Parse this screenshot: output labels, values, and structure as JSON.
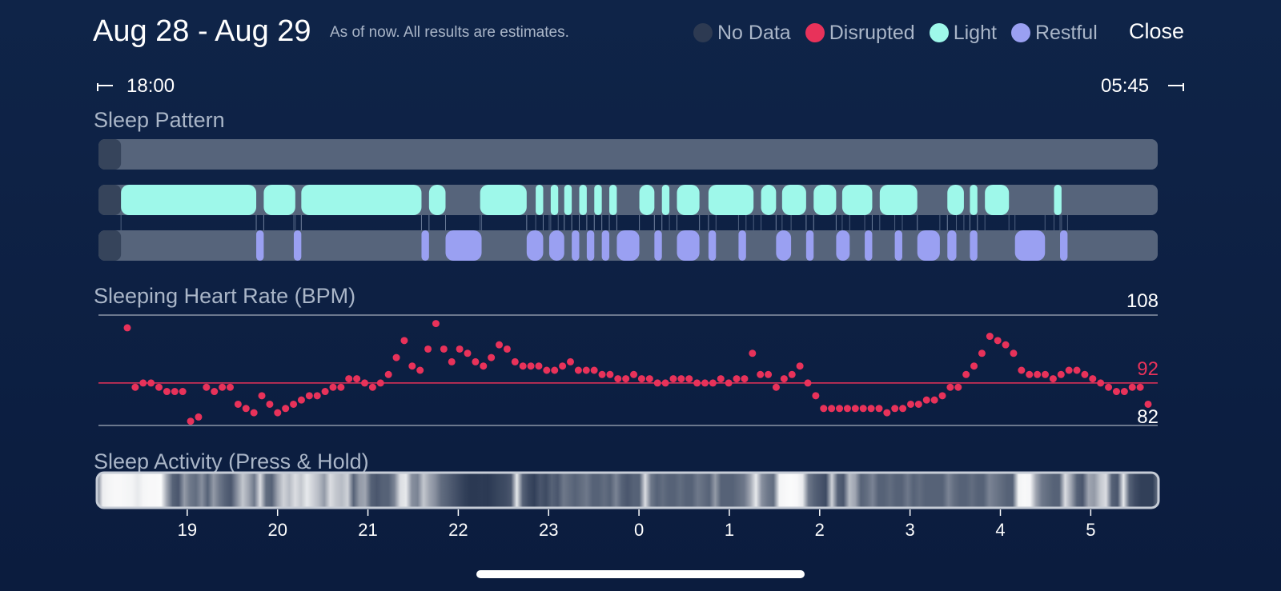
{
  "header": {
    "title": "Aug 28 - Aug 29",
    "subtitle": "As of now. All results are estimates.",
    "close_label": "Close"
  },
  "legend": [
    {
      "label": "No Data",
      "color": "#2d3a52"
    },
    {
      "label": "Disrupted",
      "color": "#e8325a"
    },
    {
      "label": "Light",
      "color": "#9ef8ea"
    },
    {
      "label": "Restful",
      "color": "#9aa0f2"
    }
  ],
  "time_range": {
    "start": "18:00",
    "end": "05:45"
  },
  "sleep_pattern": {
    "title": "Sleep Pattern",
    "colors": {
      "track": "#56647b",
      "no_data": "#36445b",
      "light": "#9ef8ea",
      "restful": "#9aa0f2"
    },
    "no_data_end": "18:15",
    "light": [
      [
        "18:15",
        "19:45"
      ],
      [
        "19:50",
        "20:11"
      ],
      [
        "20:15",
        "21:35"
      ],
      [
        "21:40",
        "21:51"
      ],
      [
        "22:14",
        "22:45"
      ],
      [
        "22:51",
        "22:56"
      ],
      [
        "23:01",
        "23:06"
      ],
      [
        "23:10",
        "23:15"
      ],
      [
        "23:20",
        "23:25"
      ],
      [
        "23:30",
        "23:35"
      ],
      [
        "23:40",
        "23:45"
      ],
      [
        "24:00",
        "24:10"
      ],
      [
        "24:15",
        "24:20"
      ],
      [
        "24:25",
        "24:40"
      ],
      [
        "24:46",
        "25:16"
      ],
      [
        "25:21",
        "25:31"
      ],
      [
        "25:35",
        "25:51"
      ],
      [
        "25:56",
        "26:11"
      ],
      [
        "26:15",
        "26:35"
      ],
      [
        "26:40",
        "27:05"
      ],
      [
        "27:25",
        "27:36"
      ],
      [
        "27:40",
        "27:45"
      ],
      [
        "27:50",
        "28:06"
      ],
      [
        "28:36",
        "28:41"
      ]
    ],
    "restful": [
      [
        "19:45",
        "19:50"
      ],
      [
        "20:10",
        "20:15"
      ],
      [
        "21:35",
        "21:40"
      ],
      [
        "21:51",
        "22:15"
      ],
      [
        "22:45",
        "22:56"
      ],
      [
        "23:00",
        "23:10"
      ],
      [
        "23:15",
        "23:20"
      ],
      [
        "23:25",
        "23:30"
      ],
      [
        "23:35",
        "23:40"
      ],
      [
        "23:45",
        "24:00"
      ],
      [
        "24:10",
        "24:15"
      ],
      [
        "24:25",
        "24:40"
      ],
      [
        "24:46",
        "24:51"
      ],
      [
        "25:06",
        "25:11"
      ],
      [
        "25:31",
        "25:41"
      ],
      [
        "25:51",
        "25:56"
      ],
      [
        "26:11",
        "26:20"
      ],
      [
        "26:30",
        "26:35"
      ],
      [
        "26:50",
        "26:55"
      ],
      [
        "27:05",
        "27:20"
      ],
      [
        "27:25",
        "27:31"
      ],
      [
        "27:40",
        "27:45"
      ],
      [
        "28:10",
        "28:30"
      ],
      [
        "28:40",
        "28:45"
      ]
    ]
  },
  "heart_rate": {
    "title": "Sleeping Heart Rate (BPM)",
    "max_label": "108",
    "avg_label": "92",
    "min_label": "82",
    "y_max": 108,
    "y_avg": 92,
    "y_min": 82,
    "dot_color": "#e8325a",
    "values": [
      105,
      91,
      92,
      92,
      91,
      90,
      90,
      90,
      83,
      84,
      91,
      90,
      91,
      91,
      87,
      86,
      85,
      89,
      87,
      85,
      86,
      87,
      88,
      89,
      89,
      90,
      91,
      91,
      93,
      93,
      92,
      91,
      92,
      94,
      98,
      102,
      96,
      95,
      100,
      106,
      100,
      97,
      100,
      99,
      97,
      96,
      98,
      101,
      100,
      97,
      96,
      96,
      96,
      95,
      95,
      96,
      97,
      95,
      95,
      95,
      94,
      94,
      93,
      93,
      94,
      93,
      93,
      92,
      92,
      93,
      93,
      93,
      92,
      92,
      92,
      93,
      92,
      93,
      93,
      99,
      94,
      94,
      91,
      93,
      94,
      96,
      92,
      89,
      86,
      86,
      86,
      86,
      86,
      86,
      86,
      86,
      85,
      86,
      86,
      87,
      87,
      88,
      88,
      89,
      91,
      91,
      94,
      96,
      99,
      103,
      102,
      101,
      99,
      95,
      94,
      94,
      94,
      93,
      94,
      95,
      95,
      94,
      93,
      92,
      91,
      90,
      90,
      91,
      91,
      87
    ]
  },
  "sleep_activity": {
    "title": "Sleep Activity (Press & Hold)",
    "intensity": [
      0.4,
      0.92,
      0.95,
      0.97,
      0.97,
      0.96,
      0.95,
      0.9,
      0.96,
      0.97,
      0.97,
      0.98,
      0.6,
      0.3,
      0.25,
      0.55,
      0.4,
      0.35,
      0.5,
      0.3,
      0.55,
      0.4,
      0.3,
      0.25,
      0.5,
      0.75,
      0.6,
      0.4,
      0.85,
      0.35,
      0.3,
      0.6,
      0.8,
      0.7,
      0.85,
      0.75,
      0.9,
      0.8,
      0.7,
      0.55,
      0.85,
      0.75,
      0.7,
      0.8,
      0.3,
      0.55,
      0.6,
      0.3,
      0.25,
      0.3,
      0.3,
      0.45,
      0.85,
      0.9,
      0.5,
      0.45,
      0.75,
      0.6,
      0.5,
      0.35,
      0.3,
      0.25,
      0.2,
      0.15,
      0.12,
      0.12,
      0.13,
      0.12,
      0.15,
      0.18,
      0.2,
      0.25,
      0.9,
      0.3,
      0.2,
      0.15,
      0.25,
      0.2,
      0.3,
      0.25,
      0.4,
      0.35,
      0.3,
      0.35,
      0.4,
      0.3,
      0.3,
      0.35,
      0.3,
      0.45,
      0.3,
      0.25,
      0.3,
      0.3,
      0.85,
      0.4,
      0.3,
      0.35,
      0.3,
      0.3,
      0.35,
      0.3,
      0.3,
      0.4,
      0.35,
      0.3,
      0.55,
      0.3,
      0.3,
      0.3,
      0.35,
      0.4,
      0.6,
      0.9,
      0.5,
      0.4,
      0.35,
      0.95,
      0.97,
      0.98,
      0.97,
      0.9,
      0.4,
      0.3,
      0.25,
      0.2,
      0.8,
      0.3,
      0.25,
      0.7,
      0.6,
      0.3,
      0.35,
      0.45,
      0.3,
      0.3,
      0.35,
      0.3,
      0.3,
      0.4,
      0.3,
      0.35,
      0.3,
      0.3,
      0.3,
      0.3,
      0.45,
      0.35,
      0.3,
      0.3,
      0.35,
      0.3,
      0.3,
      0.45,
      0.4,
      0.35,
      0.3,
      0.3,
      0.95,
      0.97,
      0.96,
      0.6,
      0.4,
      0.35,
      0.3,
      0.3,
      0.85,
      0.6,
      0.3,
      0.25,
      0.6,
      0.55,
      0.75,
      0.85,
      0.3,
      0.25,
      0.9,
      0.3,
      0.2,
      0.15,
      0.15,
      0.15,
      0.4
    ],
    "hour_labels": [
      "19",
      "20",
      "21",
      "22",
      "23",
      "0",
      "1",
      "2",
      "3",
      "4",
      "5"
    ]
  }
}
